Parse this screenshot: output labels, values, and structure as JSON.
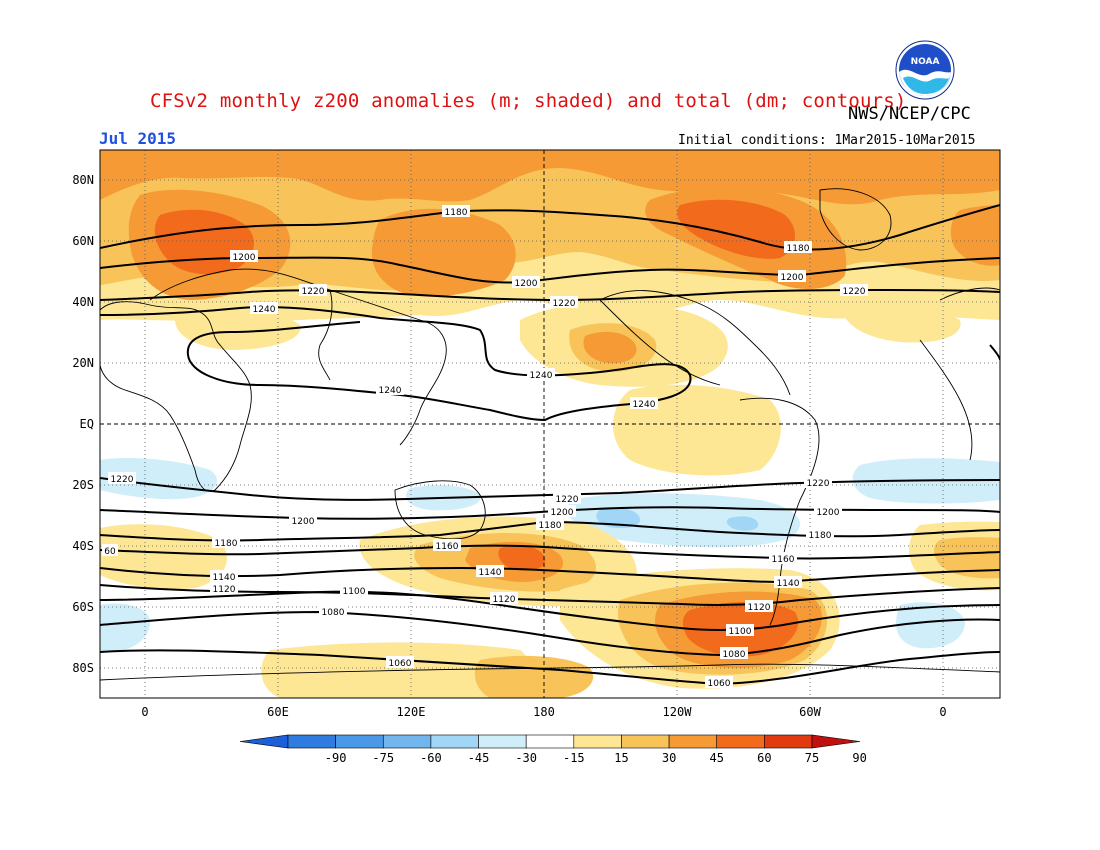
{
  "header": {
    "title": "CFSv2 monthly z200 anomalies (m; shaded) and total (dm; contours)",
    "agency": "NWS/NCEP/CPC",
    "month": "Jul 2015",
    "initial_conditions": "Initial conditions: 1Mar2015-10Mar2015",
    "logo_text": "NOAA"
  },
  "map": {
    "lat_labels": [
      "80N",
      "60N",
      "40N",
      "20N",
      "EQ",
      "20S",
      "40S",
      "60S",
      "80S"
    ],
    "lon_labels": [
      "0",
      "60E",
      "120E",
      "180",
      "120W",
      "60W",
      "0"
    ]
  },
  "colorbar": {
    "ticks": [
      "-90",
      "-75",
      "-60",
      "-45",
      "-30",
      "-15",
      "15",
      "30",
      "45",
      "60",
      "75",
      "90"
    ],
    "colors": [
      "#1c5fd8",
      "#2e7ce0",
      "#4a98e8",
      "#72b6f0",
      "#a2d6f6",
      "#cfeef9",
      "#ffffff",
      "#fde694",
      "#f8c45a",
      "#f59a35",
      "#f26a1c",
      "#e23a10",
      "#c01010"
    ]
  },
  "contours": {
    "labels": [
      {
        "id": "c1180a",
        "text": "1180"
      },
      {
        "id": "c1180b",
        "text": "1180"
      },
      {
        "id": "c1200a",
        "text": "1200"
      },
      {
        "id": "c1200b",
        "text": "1200"
      },
      {
        "id": "c1200c",
        "text": "1200"
      },
      {
        "id": "c1220a",
        "text": "1220"
      },
      {
        "id": "c1220b",
        "text": "1220"
      },
      {
        "id": "c1220c",
        "text": "1220"
      },
      {
        "id": "c1240a",
        "text": "1240"
      },
      {
        "id": "c1240b",
        "text": "1240"
      },
      {
        "id": "c1240c",
        "text": "1240"
      },
      {
        "id": "c1240d",
        "text": "1240"
      },
      {
        "id": "s1220a",
        "text": "1220"
      },
      {
        "id": "s1220b",
        "text": "1220"
      },
      {
        "id": "s1220c",
        "text": "1220"
      },
      {
        "id": "s1200a",
        "text": "1200"
      },
      {
        "id": "s1200b",
        "text": "1200"
      },
      {
        "id": "s1200c",
        "text": "1200"
      },
      {
        "id": "s1180a",
        "text": "1180"
      },
      {
        "id": "s1180b",
        "text": "1180"
      },
      {
        "id": "s1180c",
        "text": "1180"
      },
      {
        "id": "s1160a",
        "text": "1160"
      },
      {
        "id": "s1160b",
        "text": "1160"
      },
      {
        "id": "s1140a",
        "text": "1140"
      },
      {
        "id": "s1140b",
        "text": "1140"
      },
      {
        "id": "s1140c",
        "text": "1140"
      },
      {
        "id": "s1120a",
        "text": "1120"
      },
      {
        "id": "s1120b",
        "text": "1120"
      },
      {
        "id": "s1120c",
        "text": "1120"
      },
      {
        "id": "s1100a",
        "text": "1100"
      },
      {
        "id": "s1100b",
        "text": "1100"
      },
      {
        "id": "s1080a",
        "text": "1080"
      },
      {
        "id": "s1080b",
        "text": "1080"
      },
      {
        "id": "s1060a",
        "text": "1060"
      },
      {
        "id": "s1060b",
        "text": "1060"
      },
      {
        "id": "s60",
        "text": "60"
      }
    ]
  }
}
